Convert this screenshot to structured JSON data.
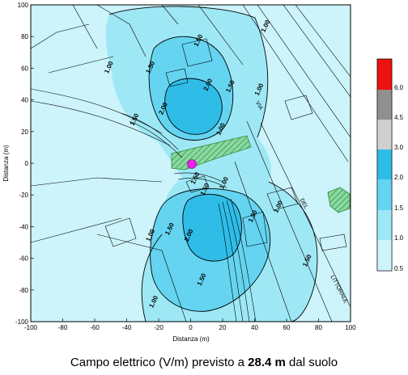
{
  "colors": {
    "band_0_5_1_0": "#ccf4fa",
    "band_1_0_1_5": "#9ee8f6",
    "band_1_5_2_0": "#64d4f0",
    "band_2_0_3_0": "#2fbde8",
    "band_3_0_4_5": "#d0d0d0",
    "band_4_5_6_0": "#909090",
    "band_6_0_plus": "#ee1111",
    "hatch": "#2e8a3e",
    "source_marker": "#ee22ee",
    "map_lines": "#000000"
  },
  "axes": {
    "ylabel": "Distanza (m)",
    "xlabel": "Distanza (m)",
    "x_ticks": [
      "-100",
      "-80",
      "-60",
      "-40",
      "-20",
      "0",
      "20",
      "40",
      "60",
      "80",
      "100"
    ],
    "y_ticks": [
      "100",
      "80",
      "60",
      "40",
      "20",
      "0",
      "-20",
      "-40",
      "-60",
      "-80",
      "-100"
    ],
    "xlim": [
      -100,
      100
    ],
    "ylim": [
      -100,
      100
    ]
  },
  "legend": {
    "labels": [
      "6.0",
      "4.5",
      "3.0",
      "2.0",
      "1.5",
      "1.0",
      "0.5"
    ]
  },
  "contour_labels": [
    {
      "text": "1.00",
      "x": 48,
      "y": 86
    },
    {
      "text": "1.00",
      "x": -50,
      "y": 60
    },
    {
      "text": "1.50",
      "x": 6,
      "y": 77
    },
    {
      "text": "1.50",
      "x": -24,
      "y": 60
    },
    {
      "text": "2.00",
      "x": 12,
      "y": 49
    },
    {
      "text": "2.00",
      "x": -16,
      "y": 34
    },
    {
      "text": "1.50",
      "x": 26,
      "y": 48
    },
    {
      "text": "1.00",
      "x": 44,
      "y": 46
    },
    {
      "text": "1.00",
      "x": 20,
      "y": 21
    },
    {
      "text": "1.50",
      "x": -34,
      "y": 27
    },
    {
      "text": "1.00",
      "x": 22,
      "y": -13
    },
    {
      "text": "1.50",
      "x": 10,
      "y": -17
    },
    {
      "text": "1.00",
      "x": 56,
      "y": -28
    },
    {
      "text": "1.50",
      "x": 40,
      "y": -34
    },
    {
      "text": "2.00",
      "x": 0,
      "y": -46
    },
    {
      "text": "1.50",
      "x": -12,
      "y": -42
    },
    {
      "text": "1.00",
      "x": -24,
      "y": -46
    },
    {
      "text": "1.50",
      "x": 74,
      "y": -62
    },
    {
      "text": "1.50",
      "x": 8,
      "y": -74
    },
    {
      "text": "1.00",
      "x": -22,
      "y": -88
    },
    {
      "text": "1.50",
      "x": 4,
      "y": -10
    }
  ],
  "street_labels": [
    {
      "text": "VIA",
      "x": 42,
      "y": 36
    },
    {
      "text": "DEL",
      "x": 70,
      "y": -26
    },
    {
      "text": "LITTORALE",
      "x": 92,
      "y": -80
    }
  ],
  "caption": {
    "prefix": "Campo elettrico (V/m) previsto a ",
    "value": "28.4 m",
    "suffix": " dal suolo"
  }
}
